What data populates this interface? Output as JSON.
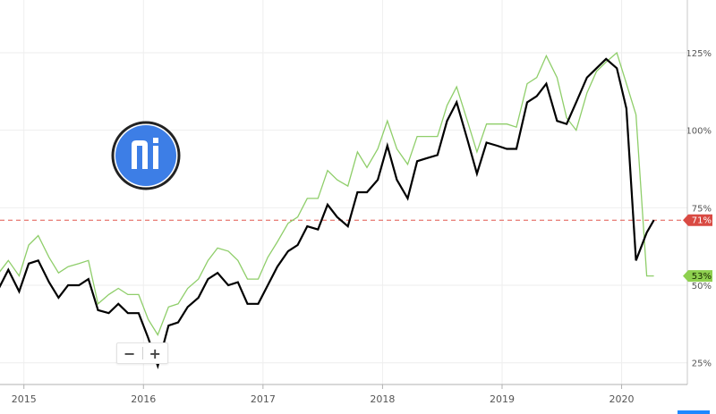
{
  "chart_data": {
    "type": "line",
    "x_ticks": [
      "2015",
      "2016",
      "2017",
      "2018",
      "2019",
      "2020"
    ],
    "y_ticks": [
      "25%",
      "50%",
      "75%",
      "100%",
      "125%"
    ],
    "ylim": [
      18,
      142
    ],
    "xlim": [
      2014.8,
      2020.55
    ],
    "grid": true,
    "series": [
      {
        "color": "#000000",
        "x": [
          2014.79,
          2014.87,
          2014.96,
          2015.04,
          2015.12,
          2015.21,
          2015.29,
          2015.37,
          2015.46,
          2015.54,
          2015.62,
          2015.71,
          2015.79,
          2015.87,
          2015.96,
          2016.04,
          2016.12,
          2016.21,
          2016.29,
          2016.37,
          2016.46,
          2016.54,
          2016.62,
          2016.71,
          2016.79,
          2016.87,
          2016.96,
          2017.04,
          2017.12,
          2017.21,
          2017.29,
          2017.37,
          2017.46,
          2017.54,
          2017.62,
          2017.71,
          2017.79,
          2017.87,
          2017.96,
          2018.04,
          2018.12,
          2018.21,
          2018.29,
          2018.37,
          2018.46,
          2018.54,
          2018.62,
          2018.71,
          2018.79,
          2018.87,
          2018.96,
          2019.04,
          2019.12,
          2019.21,
          2019.29,
          2019.37,
          2019.46,
          2019.54,
          2019.62,
          2019.71,
          2019.79,
          2019.87,
          2019.96,
          2020.04,
          2020.12,
          2020.21,
          2020.27
        ],
        "values": [
          49,
          55,
          48,
          57,
          58,
          51,
          46,
          50,
          50,
          52,
          42,
          41,
          44,
          41,
          41,
          33,
          24,
          37,
          38,
          43,
          46,
          52,
          54,
          50,
          51,
          44,
          44,
          50,
          56,
          61,
          63,
          69,
          68,
          76,
          72,
          69,
          80,
          80,
          84,
          95,
          84,
          78,
          90,
          91,
          92,
          103,
          109,
          97,
          86,
          96,
          95,
          94,
          94,
          109,
          111,
          115,
          103,
          102,
          109,
          117,
          120,
          123,
          120,
          107,
          58,
          67,
          71
        ]
      },
      {
        "color": "#8fce6a",
        "x": [
          2014.79,
          2014.87,
          2014.96,
          2015.04,
          2015.12,
          2015.21,
          2015.29,
          2015.37,
          2015.46,
          2015.54,
          2015.62,
          2015.71,
          2015.79,
          2015.87,
          2015.96,
          2016.04,
          2016.12,
          2016.21,
          2016.29,
          2016.37,
          2016.46,
          2016.54,
          2016.62,
          2016.71,
          2016.79,
          2016.87,
          2016.96,
          2017.04,
          2017.12,
          2017.21,
          2017.29,
          2017.37,
          2017.46,
          2017.54,
          2017.62,
          2017.71,
          2017.79,
          2017.87,
          2017.96,
          2018.04,
          2018.12,
          2018.21,
          2018.29,
          2018.37,
          2018.46,
          2018.54,
          2018.62,
          2018.71,
          2018.79,
          2018.87,
          2018.96,
          2019.04,
          2019.12,
          2019.21,
          2019.29,
          2019.37,
          2019.46,
          2019.54,
          2019.62,
          2019.71,
          2019.79,
          2019.87,
          2019.96,
          2020.04,
          2020.12,
          2020.21,
          2020.27
        ],
        "values": [
          54,
          58,
          53,
          63,
          66,
          59,
          54,
          56,
          57,
          58,
          44,
          47,
          49,
          47,
          47,
          39,
          34,
          43,
          44,
          49,
          52,
          58,
          62,
          61,
          58,
          52,
          52,
          59,
          64,
          70,
          72,
          78,
          78,
          87,
          84,
          82,
          93,
          88,
          94,
          103,
          94,
          89,
          98,
          98,
          98,
          108,
          114,
          103,
          93,
          102,
          102,
          102,
          101,
          115,
          117,
          124,
          117,
          104,
          100,
          112,
          119,
          122,
          125,
          115,
          105,
          53,
          53
        ]
      }
    ],
    "reference_line": {
      "value": 71,
      "color": "#e0564f"
    },
    "tags": [
      {
        "label": "71%",
        "value": 71,
        "color": "#d94a43"
      },
      {
        "label": "53%",
        "value": 53,
        "color": "#8ed04f"
      }
    ]
  },
  "zoom": {
    "minus": "−",
    "plus": "+"
  }
}
